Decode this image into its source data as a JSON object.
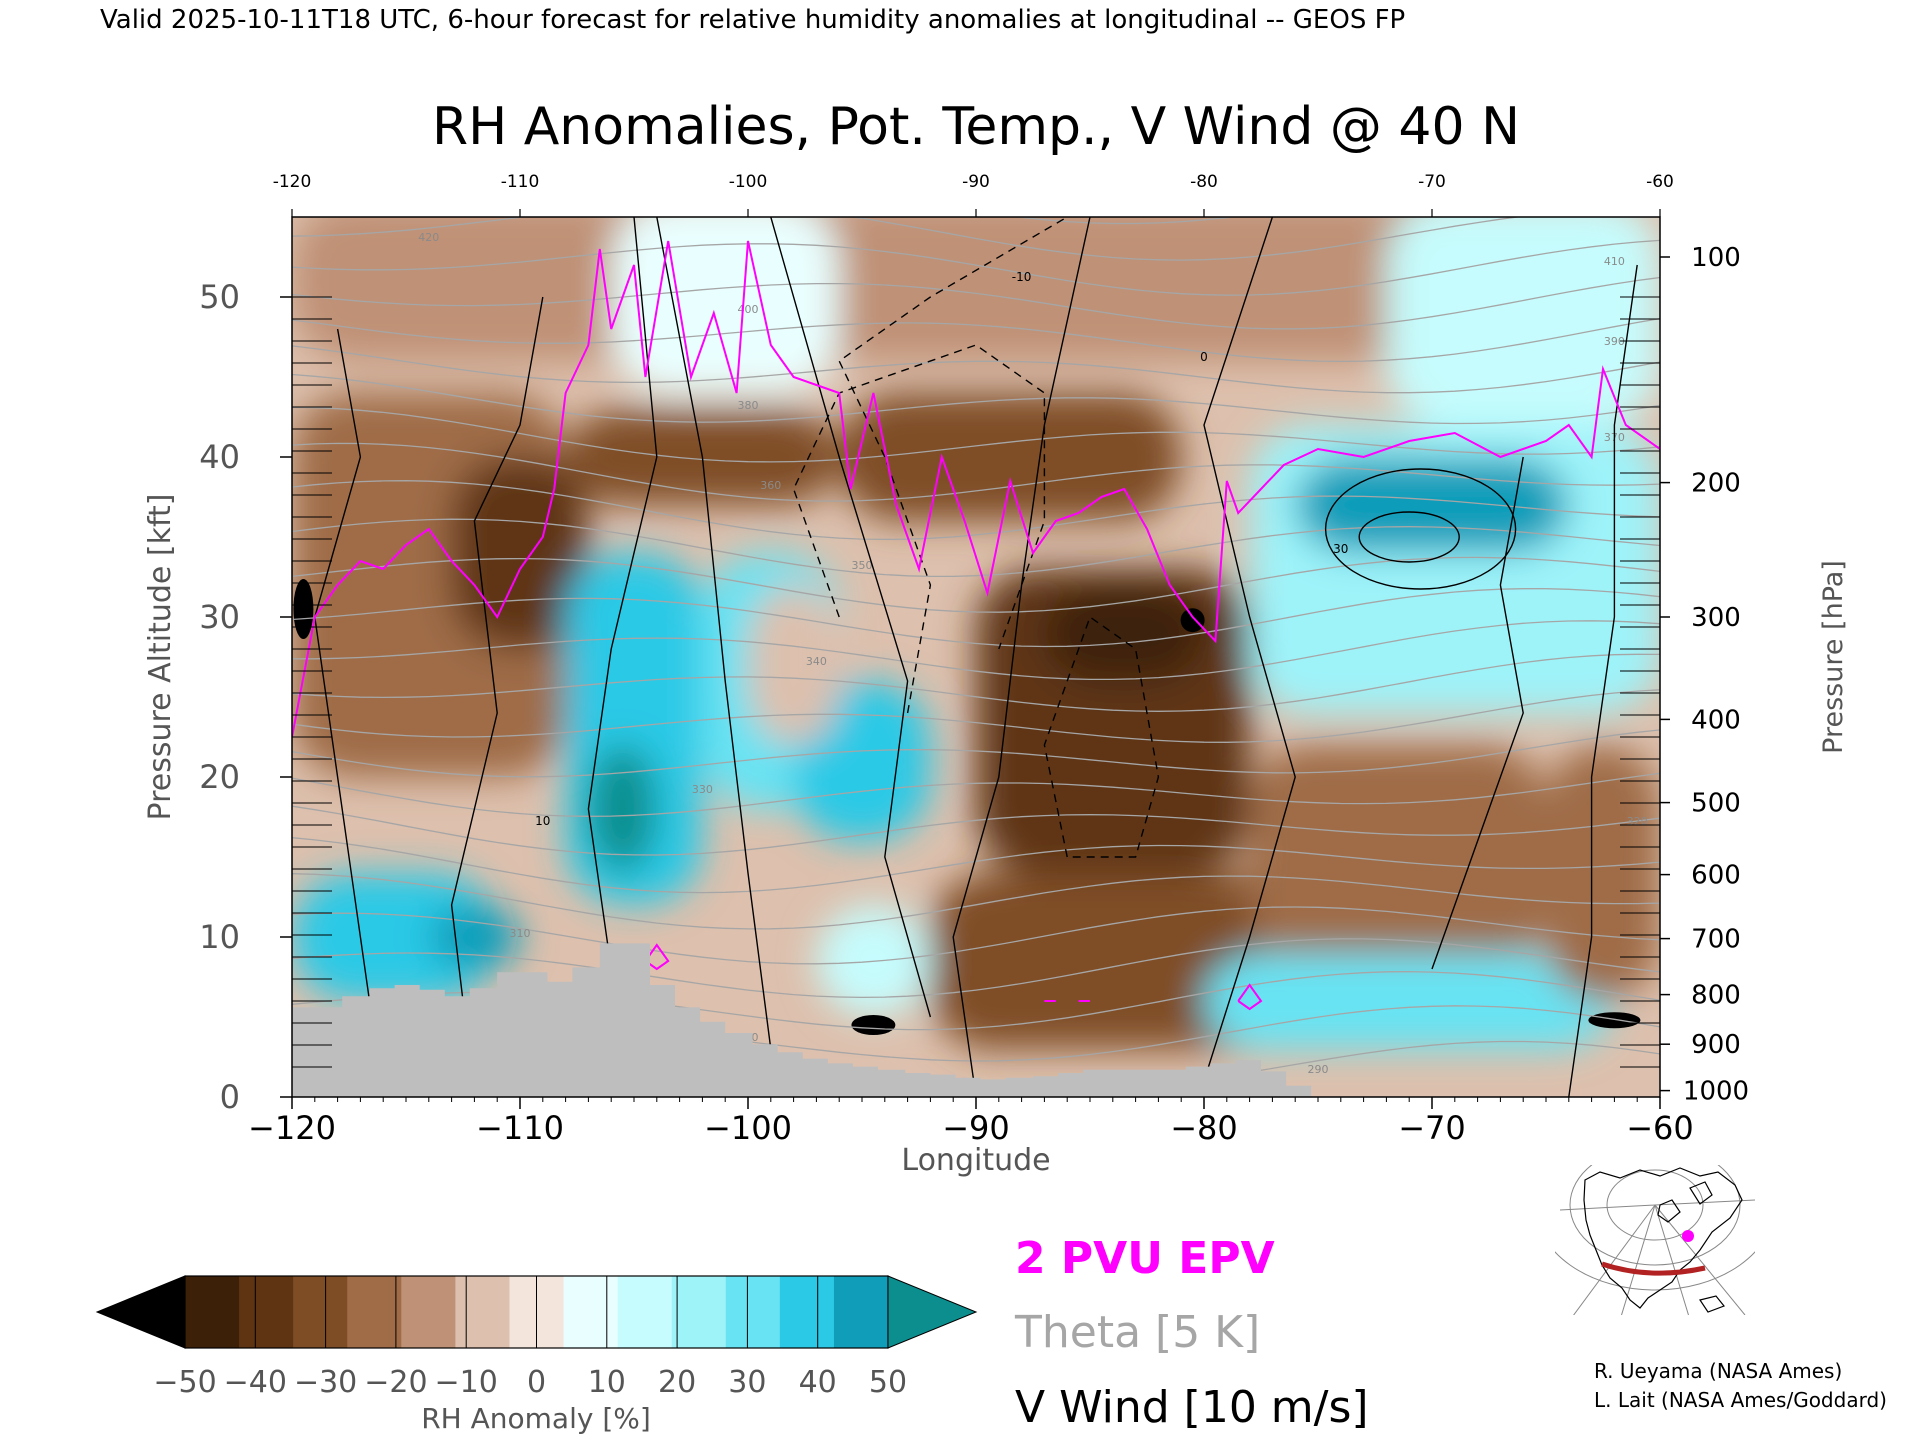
{
  "header": {
    "valid_line": "Valid 2025-10-11T18 UTC, 6-hour forecast for relative humidity anomalies at longitudinal -- GEOS FP"
  },
  "chart_data": {
    "type": "heatmap",
    "title": "RH Anomalies, Pot. Temp., V Wind @ 40 N",
    "xlabel": "Longitude",
    "ylabel_left": "Pressure Altitude [kft]",
    "ylabel_right": "Pressure [hPa]",
    "xlim": [
      -120,
      -60
    ],
    "ylim": [
      0,
      55
    ],
    "x_ticks_bottom": [
      "−120",
      "−110",
      "−100",
      "−90",
      "−80",
      "−70",
      "−60"
    ],
    "x_ticks_top": [
      "-120",
      "-110",
      "-100",
      "-90",
      "-80",
      "-70",
      "-60"
    ],
    "x_tick_values": [
      -120,
      -110,
      -100,
      -90,
      -80,
      -70,
      -60
    ],
    "y_ticks_left": [
      "0",
      "10",
      "20",
      "30",
      "40",
      "50"
    ],
    "y_tick_values": [
      0,
      10,
      20,
      30,
      40,
      50
    ],
    "pressure_ticks": [
      {
        "label": "100",
        "kft": 52.5
      },
      {
        "label": "200",
        "kft": 38.4
      },
      {
        "label": "300",
        "kft": 30.0
      },
      {
        "label": "400",
        "kft": 23.6
      },
      {
        "label": "500",
        "kft": 18.4
      },
      {
        "label": "600",
        "kft": 13.9
      },
      {
        "label": "700",
        "kft": 9.9
      },
      {
        "label": "800",
        "kft": 6.4
      },
      {
        "label": "900",
        "kft": 3.3
      },
      {
        "label": "1000",
        "kft": 0.4
      }
    ],
    "theta_contour_labels": [
      "290",
      "300",
      "310",
      "320",
      "330",
      "340",
      "350",
      "360",
      "370",
      "380",
      "390",
      "400",
      "410",
      "420"
    ],
    "wind_contour_labels": [
      "-10",
      "0",
      "10",
      "30"
    ],
    "colorbar": {
      "label": "RH Anomaly [%]",
      "tick_labels": [
        "−50",
        "−40",
        "−30",
        "−20",
        "−10",
        "0",
        "10",
        "20",
        "30",
        "40",
        "50"
      ],
      "colors": [
        "#000000",
        "#3d2008",
        "#5e3412",
        "#7f4d25",
        "#9f6c47",
        "#bf9176",
        "#ddc0ad",
        "#f3e4dc",
        "#e9ffff",
        "#c6fcfd",
        "#9ef3f9",
        "#68e3f3",
        "#2cc9e6",
        "#0f9dba",
        "#0d8e8e"
      ]
    },
    "legend": {
      "epv": "2 PVU EPV",
      "theta": "Theta [5 K]",
      "wind": "V Wind [10 m/s]",
      "epv_color": "#ff00ff",
      "theta_color": "#a6a6a6",
      "wind_color": "#000000"
    },
    "terrain_color": "#bebebe",
    "terrain_kft": [
      [
        -120.0,
        5.6
      ],
      [
        -118.9,
        5.6
      ],
      [
        -117.8,
        6.3
      ],
      [
        -116.6,
        6.8
      ],
      [
        -115.5,
        7.0
      ],
      [
        -114.4,
        6.7
      ],
      [
        -113.3,
        6.3
      ],
      [
        -112.2,
        6.8
      ],
      [
        -111.0,
        7.8
      ],
      [
        -109.9,
        7.8
      ],
      [
        -108.8,
        7.2
      ],
      [
        -107.7,
        8.1
      ],
      [
        -106.5,
        9.6
      ],
      [
        -105.4,
        9.6
      ],
      [
        -104.3,
        7.0
      ],
      [
        -103.2,
        5.6
      ],
      [
        -102.1,
        4.7
      ],
      [
        -101.0,
        4.0
      ],
      [
        -99.8,
        3.3
      ],
      [
        -98.7,
        2.8
      ],
      [
        -97.6,
        2.4
      ],
      [
        -96.5,
        2.1
      ],
      [
        -95.4,
        1.9
      ],
      [
        -94.3,
        1.7
      ],
      [
        -93.1,
        1.5
      ],
      [
        -92.0,
        1.4
      ],
      [
        -90.9,
        1.2
      ],
      [
        -89.8,
        1.1
      ],
      [
        -88.7,
        1.2
      ],
      [
        -87.5,
        1.3
      ],
      [
        -86.4,
        1.5
      ],
      [
        -85.3,
        1.7
      ],
      [
        -84.2,
        1.7
      ],
      [
        -83.1,
        1.7
      ],
      [
        -82.0,
        1.7
      ],
      [
        -80.8,
        1.9
      ],
      [
        -79.7,
        2.1
      ],
      [
        -78.6,
        2.3
      ],
      [
        -77.5,
        1.6
      ],
      [
        -76.4,
        0.7
      ],
      [
        -75.3,
        0.0
      ]
    ],
    "epv_2pvu_kft": [
      [
        -120.0,
        22.5
      ],
      [
        -119.0,
        30.0
      ],
      [
        -118.0,
        32.0
      ],
      [
        -117.0,
        33.5
      ],
      [
        -116.0,
        33.0
      ],
      [
        -115.0,
        34.5
      ],
      [
        -114.0,
        35.5
      ],
      [
        -113.0,
        33.5
      ],
      [
        -112.0,
        32.0
      ],
      [
        -111.0,
        30.0
      ],
      [
        -110.0,
        33.0
      ],
      [
        -109.0,
        35.0
      ],
      [
        -108.5,
        38.0
      ],
      [
        -108.0,
        44.0
      ],
      [
        -107.0,
        47.0
      ],
      [
        -106.5,
        53.0
      ],
      [
        -106.0,
        48.0
      ],
      [
        -105.0,
        52.0
      ],
      [
        -104.5,
        45.0
      ],
      [
        -103.5,
        53.5
      ],
      [
        -102.5,
        45.0
      ],
      [
        -101.5,
        49.0
      ],
      [
        -100.5,
        44.0
      ],
      [
        -100.0,
        53.5
      ],
      [
        -99.0,
        47.0
      ],
      [
        -98.0,
        45.0
      ],
      [
        -97.0,
        44.5
      ],
      [
        -96.0,
        44.0
      ],
      [
        -95.5,
        38.0
      ],
      [
        -94.5,
        44.0
      ],
      [
        -93.5,
        37.0
      ],
      [
        -92.5,
        33.0
      ],
      [
        -91.5,
        40.0
      ],
      [
        -90.5,
        36.0
      ],
      [
        -89.5,
        31.5
      ],
      [
        -88.5,
        38.5
      ],
      [
        -87.5,
        34.0
      ],
      [
        -86.5,
        36.0
      ],
      [
        -85.5,
        36.5
      ],
      [
        -84.5,
        37.5
      ],
      [
        -83.5,
        38.0
      ],
      [
        -82.5,
        35.5
      ],
      [
        -81.5,
        32.0
      ],
      [
        -80.5,
        30.0
      ],
      [
        -79.5,
        28.5
      ],
      [
        -79.0,
        38.5
      ],
      [
        -78.5,
        36.5
      ],
      [
        -77.5,
        38.0
      ],
      [
        -76.5,
        39.5
      ],
      [
        -75.0,
        40.5
      ],
      [
        -73.0,
        40.0
      ],
      [
        -71.0,
        41.0
      ],
      [
        -69.0,
        41.5
      ],
      [
        -67.0,
        40.0
      ],
      [
        -65.0,
        41.0
      ],
      [
        -64.0,
        42.0
      ],
      [
        -63.0,
        40.0
      ],
      [
        -62.5,
        45.5
      ],
      [
        -61.5,
        42.0
      ],
      [
        -60.0,
        40.5
      ]
    ],
    "epv_low_fragments_kft": [
      [
        [
          -104.5,
          8.5
        ],
        [
          -104.0,
          9.5
        ],
        [
          -103.5,
          8.5
        ],
        [
          -104.0,
          8.0
        ],
        [
          -104.5,
          8.5
        ]
      ],
      [
        [
          -78.5,
          6.0
        ],
        [
          -78.0,
          7.0
        ],
        [
          -77.5,
          6.0
        ],
        [
          -78.0,
          5.5
        ],
        [
          -78.5,
          6.0
        ]
      ],
      [
        [
          -87.0,
          6.0
        ],
        [
          -86.5,
          6.0
        ]
      ],
      [
        [
          -85.5,
          6.0
        ],
        [
          -85.0,
          6.0
        ]
      ]
    ],
    "minimap_caption": "",
    "credits": [
      "R. Ueyama (NASA Ames)",
      "L. Lait (NASA Ames/Goddard)"
    ]
  }
}
